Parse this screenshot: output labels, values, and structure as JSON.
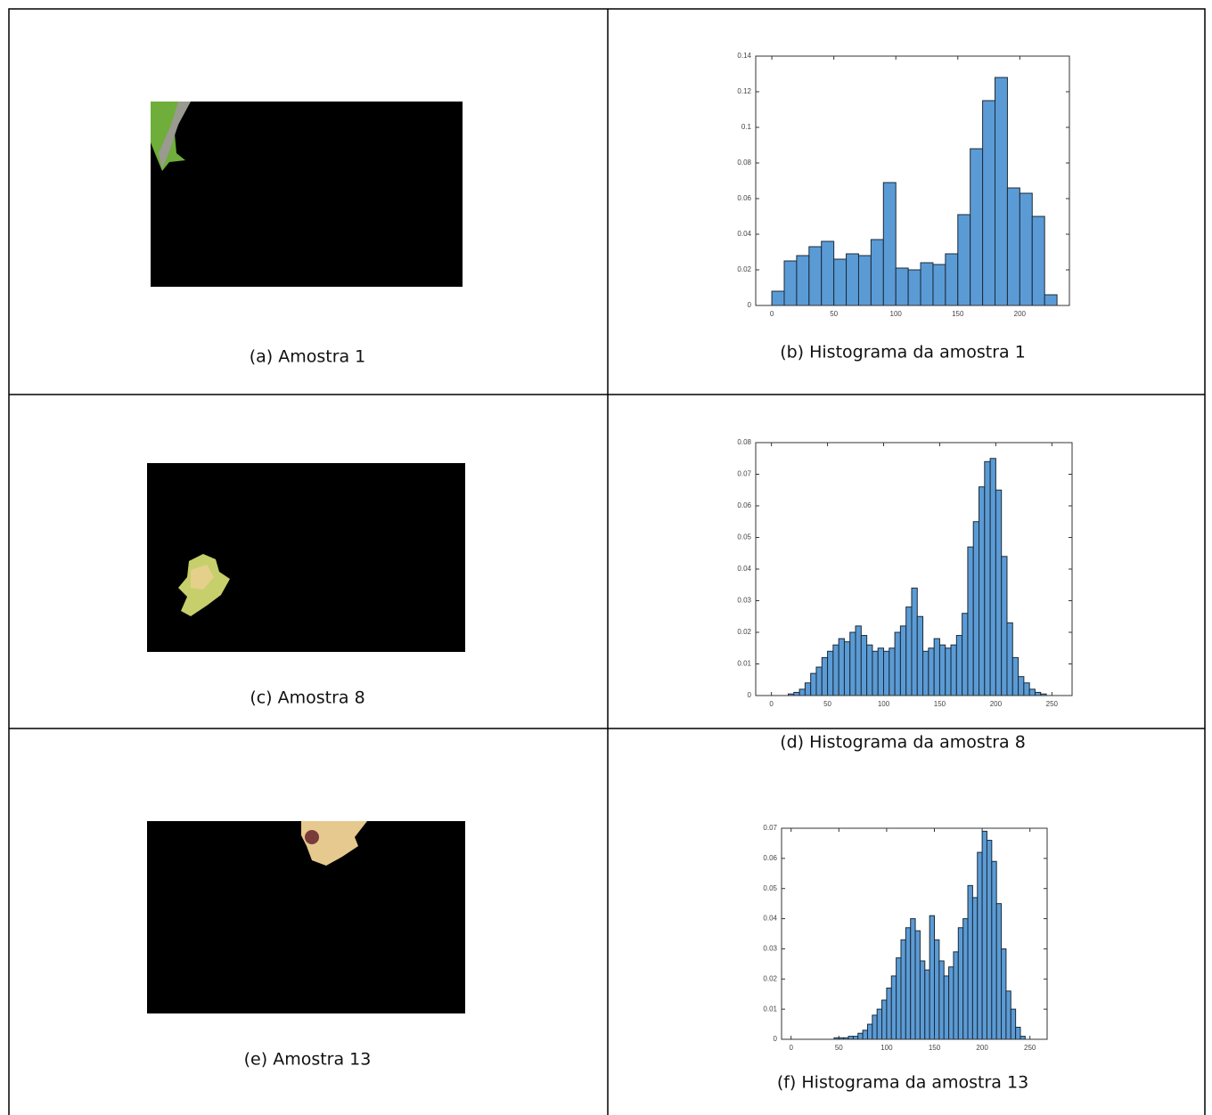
{
  "captions": [
    "(a) Amostra 1",
    "(b) Histograma da amostra 1",
    "(c) Amostra 8",
    "(d) Histograma da amostra 8",
    "(e) Amostra 13",
    "(f) Histograma da amostra 13"
  ],
  "chart_data": [
    {
      "type": "histogram",
      "color": "#5b9bd5",
      "bins": [
        0,
        10,
        20,
        30,
        40,
        50,
        60,
        70,
        80,
        90,
        100,
        110,
        120,
        130,
        140,
        150,
        160,
        170,
        180,
        190,
        200,
        210,
        220,
        230
      ],
      "values": [
        0.008,
        0.025,
        0.028,
        0.033,
        0.036,
        0.026,
        0.029,
        0.028,
        0.037,
        0.069,
        0.021,
        0.02,
        0.024,
        0.023,
        0.029,
        0.051,
        0.088,
        0.115,
        0.128,
        0.066,
        0.063,
        0.05,
        0.006
      ],
      "xlim": [
        -13,
        240
      ],
      "ylim": [
        0,
        0.14
      ],
      "xticks": [
        0,
        50,
        100,
        150,
        200
      ],
      "yticks": [
        0,
        0.02,
        0.04,
        0.06,
        0.08,
        0.1,
        0.12,
        0.14
      ]
    },
    {
      "type": "histogram",
      "color": "#5b9bd5",
      "bins": [
        0,
        5,
        10,
        15,
        20,
        25,
        30,
        35,
        40,
        45,
        50,
        55,
        60,
        65,
        70,
        75,
        80,
        85,
        90,
        95,
        100,
        105,
        110,
        115,
        120,
        125,
        130,
        135,
        140,
        145,
        150,
        155,
        160,
        165,
        170,
        175,
        180,
        185,
        190,
        195,
        200,
        205,
        210,
        215,
        220,
        225,
        230,
        235,
        240,
        245,
        250
      ],
      "values": [
        0,
        0,
        0,
        0.0005,
        0.001,
        0.002,
        0.004,
        0.007,
        0.009,
        0.012,
        0.014,
        0.016,
        0.018,
        0.017,
        0.02,
        0.022,
        0.019,
        0.016,
        0.014,
        0.015,
        0.014,
        0.015,
        0.02,
        0.022,
        0.028,
        0.034,
        0.025,
        0.014,
        0.015,
        0.018,
        0.016,
        0.015,
        0.016,
        0.019,
        0.026,
        0.047,
        0.055,
        0.066,
        0.074,
        0.075,
        0.065,
        0.044,
        0.023,
        0.012,
        0.006,
        0.004,
        0.002,
        0.001,
        0.0005,
        0
      ],
      "xlim": [
        -14,
        268
      ],
      "ylim": [
        0,
        0.08
      ],
      "xticks": [
        0,
        50,
        100,
        150,
        200,
        250
      ],
      "yticks": [
        0,
        0.01,
        0.02,
        0.03,
        0.04,
        0.05,
        0.06,
        0.07,
        0.08
      ]
    },
    {
      "type": "histogram",
      "color": "#5b9bd5",
      "bins": [
        0,
        5,
        10,
        15,
        20,
        25,
        30,
        35,
        40,
        45,
        50,
        55,
        60,
        65,
        70,
        75,
        80,
        85,
        90,
        95,
        100,
        105,
        110,
        115,
        120,
        125,
        130,
        135,
        140,
        145,
        150,
        155,
        160,
        165,
        170,
        175,
        180,
        185,
        190,
        195,
        200,
        205,
        210,
        215,
        220,
        225,
        230,
        235,
        240,
        245,
        250
      ],
      "values": [
        0,
        0,
        0,
        0,
        0,
        0,
        0,
        0,
        0,
        0.0005,
        0.0005,
        0.0005,
        0.001,
        0.001,
        0.002,
        0.003,
        0.005,
        0.008,
        0.01,
        0.013,
        0.017,
        0.021,
        0.027,
        0.033,
        0.037,
        0.04,
        0.036,
        0.026,
        0.023,
        0.041,
        0.033,
        0.026,
        0.021,
        0.024,
        0.029,
        0.037,
        0.04,
        0.051,
        0.047,
        0.062,
        0.069,
        0.066,
        0.059,
        0.045,
        0.03,
        0.016,
        0.01,
        0.004,
        0.001,
        0
      ],
      "xlim": [
        -10,
        268
      ],
      "ylim": [
        0,
        0.07
      ],
      "xticks": [
        0,
        50,
        100,
        150,
        200,
        250
      ],
      "yticks": [
        0,
        0.01,
        0.02,
        0.03,
        0.04,
        0.05,
        0.06,
        0.07
      ]
    }
  ]
}
